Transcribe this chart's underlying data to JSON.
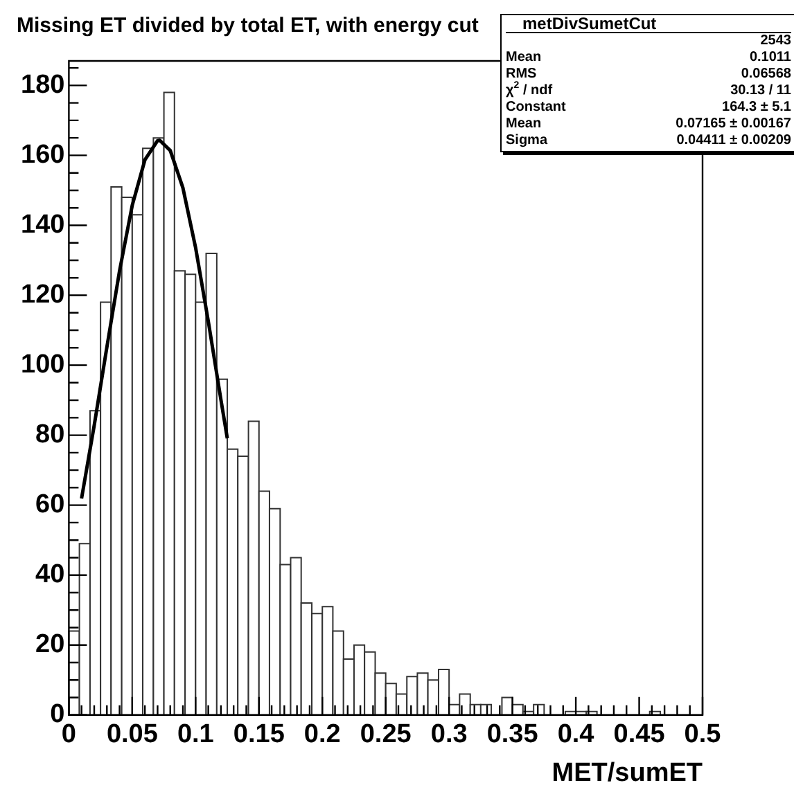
{
  "chart_data": {
    "type": "histogram",
    "title": "Missing ET divided by total ET, with energy cut",
    "xlabel": "MET/sumET",
    "xlim": [
      0,
      0.5
    ],
    "ylim": [
      0,
      187
    ],
    "xticks": [
      0,
      {
        "value": 0.01,
        "label": null
      },
      {
        "value": 0.02,
        "label": null
      },
      {
        "value": 0.03,
        "label": null
      },
      {
        "value": 0.04,
        "label": null
      },
      0.05,
      {
        "value": 0.06,
        "label": null
      },
      {
        "value": 0.07,
        "label": null
      },
      {
        "value": 0.08,
        "label": null
      },
      {
        "value": 0.09,
        "label": null
      },
      0.1,
      {
        "value": 0.11,
        "label": null
      },
      {
        "value": 0.12,
        "label": null
      },
      {
        "value": 0.13,
        "label": null
      },
      {
        "value": 0.14,
        "label": null
      },
      0.15,
      {
        "value": 0.16,
        "label": null
      },
      {
        "value": 0.17,
        "label": null
      },
      {
        "value": 0.18,
        "label": null
      },
      {
        "value": 0.19,
        "label": null
      },
      0.2,
      {
        "value": 0.21,
        "label": null
      },
      {
        "value": 0.22,
        "label": null
      },
      {
        "value": 0.23,
        "label": null
      },
      {
        "value": 0.24,
        "label": null
      },
      0.25,
      {
        "value": 0.26,
        "label": null
      },
      {
        "value": 0.27,
        "label": null
      },
      {
        "value": 0.28,
        "label": null
      },
      {
        "value": 0.29,
        "label": null
      },
      0.3,
      {
        "value": 0.31,
        "label": null
      },
      {
        "value": 0.32,
        "label": null
      },
      {
        "value": 0.33,
        "label": null
      },
      {
        "value": 0.34,
        "label": null
      },
      0.35,
      {
        "value": 0.36,
        "label": null
      },
      {
        "value": 0.37,
        "label": null
      },
      {
        "value": 0.38,
        "label": null
      },
      {
        "value": 0.39,
        "label": null
      },
      0.4,
      {
        "value": 0.41,
        "label": null
      },
      {
        "value": 0.42,
        "label": null
      },
      {
        "value": 0.43,
        "label": null
      },
      {
        "value": 0.44,
        "label": null
      },
      0.45,
      {
        "value": 0.46,
        "label": null
      },
      {
        "value": 0.47,
        "label": null
      },
      {
        "value": 0.48,
        "label": null
      },
      {
        "value": 0.49,
        "label": null
      },
      0.5
    ],
    "yticks": [
      0,
      {
        "value": 5,
        "label": null
      },
      {
        "value": 10,
        "label": null
      },
      {
        "value": 15,
        "label": null
      },
      20,
      {
        "value": 25,
        "label": null
      },
      {
        "value": 30,
        "label": null
      },
      {
        "value": 35,
        "label": null
      },
      40,
      {
        "value": 45,
        "label": null
      },
      {
        "value": 50,
        "label": null
      },
      {
        "value": 55,
        "label": null
      },
      60,
      {
        "value": 65,
        "label": null
      },
      {
        "value": 70,
        "label": null
      },
      {
        "value": 75,
        "label": null
      },
      80,
      {
        "value": 85,
        "label": null
      },
      {
        "value": 90,
        "label": null
      },
      {
        "value": 95,
        "label": null
      },
      100,
      {
        "value": 105,
        "label": null
      },
      {
        "value": 110,
        "label": null
      },
      {
        "value": 115,
        "label": null
      },
      120,
      {
        "value": 125,
        "label": null
      },
      {
        "value": 130,
        "label": null
      },
      {
        "value": 135,
        "label": null
      },
      140,
      {
        "value": 145,
        "label": null
      },
      {
        "value": 150,
        "label": null
      },
      {
        "value": 155,
        "label": null
      },
      160,
      {
        "value": 165,
        "label": null
      },
      {
        "value": 170,
        "label": null
      },
      {
        "value": 175,
        "label": null
      },
      180,
      {
        "value": 185,
        "label": null
      }
    ],
    "series": [
      {
        "type": "histogram",
        "color": "#333333",
        "bins": [
          0,
          0.0083,
          0.0167,
          0.025,
          0.0333,
          0.0417,
          0.05,
          0.0583,
          0.0667,
          0.075,
          0.0833,
          0.0917,
          0.1,
          0.1083,
          0.1167,
          0.125,
          0.1333,
          0.1417,
          0.15,
          0.1583,
          0.1667,
          0.175,
          0.1833,
          0.1917,
          0.2,
          0.2083,
          0.2167,
          0.225,
          0.2333,
          0.2417,
          0.25,
          0.2583,
          0.2667,
          0.275,
          0.2833,
          0.2917,
          0.3,
          0.3083,
          0.3167,
          0.325,
          0.3333,
          0.3417,
          0.35,
          0.3583,
          0.3667,
          0.375,
          0.3833,
          0.3917,
          0.4,
          0.4083,
          0.4167,
          0.425,
          0.4333,
          0.4417,
          0.45,
          0.4583,
          0.4667,
          0.475,
          0.4833,
          0.4917,
          0.5
        ],
        "values": [
          24,
          49,
          87,
          118,
          151,
          148,
          143,
          162,
          165,
          178,
          127,
          126,
          118,
          132,
          96,
          76,
          74,
          84,
          64,
          59,
          43,
          45,
          32,
          29,
          31,
          24,
          16,
          20,
          18,
          12,
          9,
          6,
          11,
          12,
          10,
          13,
          3,
          6,
          3,
          3,
          0,
          5,
          3,
          1,
          3,
          0,
          0,
          1,
          1,
          1,
          0,
          0,
          0,
          0,
          0,
          1,
          0,
          0,
          0,
          0
        ]
      },
      {
        "type": "line",
        "color": "#000000",
        "x": [
          0.01,
          0.02,
          0.03,
          0.04,
          0.05,
          0.06,
          0.07,
          0.0717,
          0.08,
          0.09,
          0.1,
          0.11,
          0.12,
          0.125
        ],
        "values": [
          61.9,
          82.8,
          105.2,
          127,
          145.7,
          158.7,
          164.2,
          164.3,
          161.4,
          150.7,
          133.6,
          112.6,
          90.1,
          79.1
        ]
      }
    ],
    "annotations": [
      "metDivSumetCut",
      "2543",
      "Mean",
      "0.1011",
      "RMS",
      "0.06568",
      "χ$^{2}$ / ndf",
      "30.13 / 11",
      "Constant",
      "164.3 ± 5.1",
      "Mean",
      "0.07165 ± 0.00167",
      "Sigma",
      "0.04411 ± 0.00209"
    ]
  }
}
